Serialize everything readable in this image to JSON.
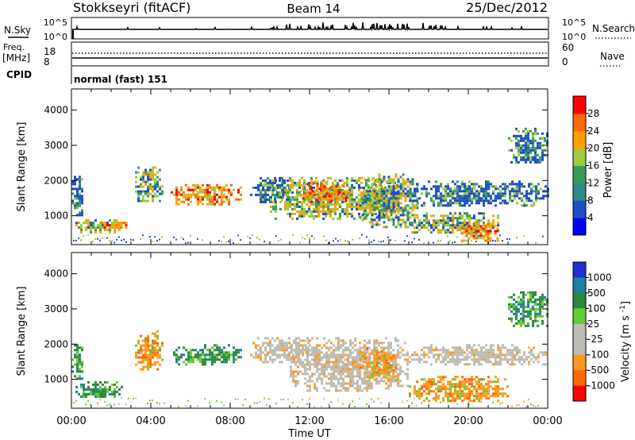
{
  "header": {
    "station": "Stokkseyri (fitACF)",
    "beam": "Beam 14",
    "date": "25/Dec/2012"
  },
  "noise_panel": {
    "left_label": "N.Sky",
    "left_ticks": [
      "10^5",
      "10^0"
    ],
    "right_ticks": [
      "10^5",
      "10^0"
    ],
    "right_label": "N.Search"
  },
  "freq_panel": {
    "left_label_1": "Freq.",
    "left_label_2": "[MHz]",
    "left_ticks": [
      "18",
      "8"
    ],
    "right_ticks": [
      "60",
      "0"
    ],
    "right_label": "Nave"
  },
  "cpid_panel": {
    "label": "CPID",
    "text": "normal (fast) 151"
  },
  "chart_data": [
    {
      "type": "heatmap",
      "title": "",
      "xlabel": "Time UT",
      "ylabel": "Slant Range [km]",
      "x_ticks": [
        "00:00",
        "04:00",
        "08:00",
        "12:00",
        "16:00",
        "20:00",
        "00:00"
      ],
      "xlim_hours": [
        0,
        24
      ],
      "y_ticks": [
        1000,
        2000,
        3000,
        4000
      ],
      "ylim": [
        180,
        4600
      ],
      "colorbar": {
        "label": "Power [dB]",
        "ticks": [
          4,
          8,
          12,
          16,
          20,
          24,
          28
        ],
        "range": [
          0,
          32
        ],
        "colors": [
          "#0000ff",
          "#1c4fc4",
          "#2e8a8a",
          "#3a9a5a",
          "#9ccc3c",
          "#ffa000",
          "#ff6a00",
          "#ff0000"
        ]
      },
      "regions": [
        {
          "t": [
            0.0,
            0.6
          ],
          "r": [
            1000,
            2200
          ],
          "level": "low"
        },
        {
          "t": [
            0.2,
            2.4
          ],
          "r": [
            500,
            900
          ],
          "level": "mid"
        },
        {
          "t": [
            1.5,
            2.8
          ],
          "r": [
            650,
            900
          ],
          "level": "high"
        },
        {
          "t": [
            3.2,
            4.6
          ],
          "r": [
            1400,
            2400
          ],
          "level": "mid"
        },
        {
          "t": [
            5.0,
            8.5
          ],
          "r": [
            1300,
            1900
          ],
          "level": "high"
        },
        {
          "t": [
            9.0,
            11.0
          ],
          "r": [
            1400,
            2100
          ],
          "level": "low"
        },
        {
          "t": [
            10.0,
            16.5
          ],
          "r": [
            900,
            2100
          ],
          "level": "mid"
        },
        {
          "t": [
            11.5,
            14.0
          ],
          "r": [
            1400,
            2000
          ],
          "level": "high"
        },
        {
          "t": [
            14.5,
            17.5
          ],
          "r": [
            700,
            2200
          ],
          "level": "mid"
        },
        {
          "t": [
            17.0,
            21.5
          ],
          "r": [
            500,
            1100
          ],
          "level": "mid"
        },
        {
          "t": [
            19.5,
            21.5
          ],
          "r": [
            300,
            800
          ],
          "level": "high"
        },
        {
          "t": [
            17.0,
            24.0
          ],
          "r": [
            1300,
            2000
          ],
          "level": "low"
        },
        {
          "t": [
            22.0,
            24.0
          ],
          "r": [
            2500,
            3500
          ],
          "level": "low"
        }
      ]
    },
    {
      "type": "heatmap",
      "title": "",
      "xlabel": "Time UT",
      "ylabel": "Slant Range [km]",
      "x_ticks": [
        "00:00",
        "04:00",
        "08:00",
        "12:00",
        "16:00",
        "20:00",
        "00:00"
      ],
      "xlim_hours": [
        0,
        24
      ],
      "y_ticks": [
        1000,
        2000,
        3000,
        4000
      ],
      "ylim": [
        180,
        4600
      ],
      "colorbar": {
        "label": "Velocity [m s^-1]",
        "ticks": [
          "1000",
          "500",
          "100",
          "25",
          "-25",
          "-100",
          "-500",
          "-1000"
        ],
        "colors": [
          "#2030d0",
          "#1f7fa0",
          "#2b8a3a",
          "#66cc33",
          "#bdbdb4",
          "#bdbdb4",
          "#ff9a20",
          "#ff6a00",
          "#ff0000"
        ]
      },
      "regions": [
        {
          "t": [
            0.0,
            0.6
          ],
          "r": [
            1000,
            2000
          ],
          "level": "green"
        },
        {
          "t": [
            0.2,
            2.6
          ],
          "r": [
            500,
            950
          ],
          "level": "green"
        },
        {
          "t": [
            3.2,
            4.6
          ],
          "r": [
            1200,
            2400
          ],
          "level": "orange"
        },
        {
          "t": [
            5.0,
            8.5
          ],
          "r": [
            1400,
            2000
          ],
          "level": "green"
        },
        {
          "t": [
            9.0,
            12.0
          ],
          "r": [
            1500,
            2200
          ],
          "level": "grey"
        },
        {
          "t": [
            11.0,
            17.0
          ],
          "r": [
            700,
            2200
          ],
          "level": "grey"
        },
        {
          "t": [
            14.5,
            16.5
          ],
          "r": [
            1000,
            1900
          ],
          "level": "orange"
        },
        {
          "t": [
            17.0,
            22.0
          ],
          "r": [
            400,
            1100
          ],
          "level": "orange"
        },
        {
          "t": [
            17.0,
            24.0
          ],
          "r": [
            1400,
            2000
          ],
          "level": "grey"
        },
        {
          "t": [
            22.0,
            24.0
          ],
          "r": [
            2500,
            3500
          ],
          "level": "green"
        }
      ]
    }
  ]
}
